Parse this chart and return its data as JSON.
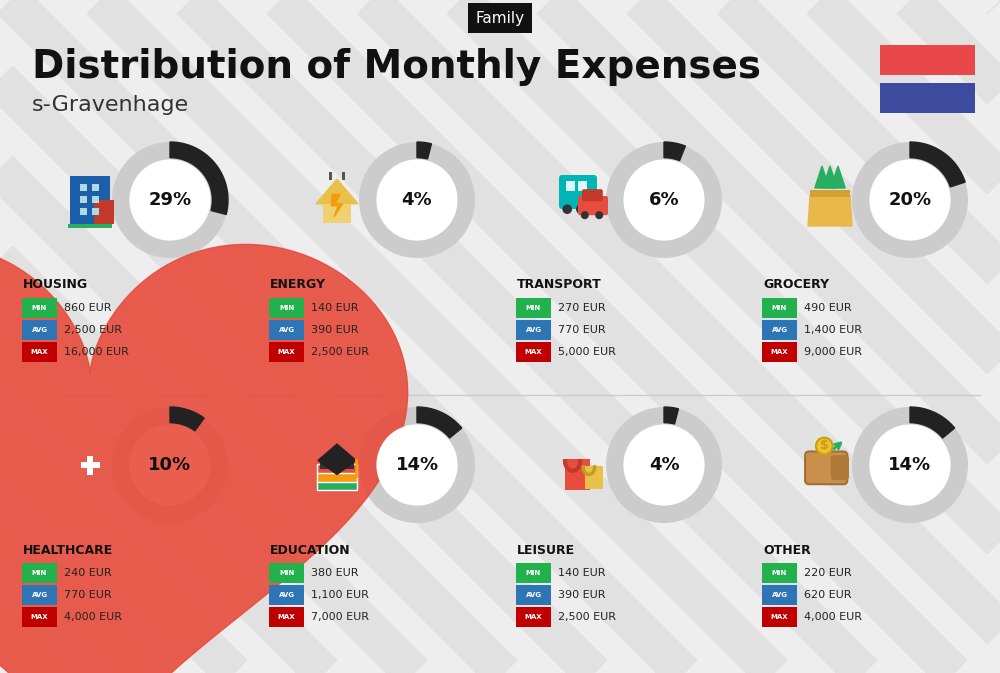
{
  "title": "Distribution of Monthly Expenses",
  "subtitle": "s-Gravenhage",
  "tag": "Family",
  "bg_color": "#eeeeee",
  "categories": [
    {
      "name": "HOUSING",
      "pct": 29,
      "row": 0,
      "col": 0,
      "min": "860 EUR",
      "avg": "2,500 EUR",
      "max": "16,000 EUR"
    },
    {
      "name": "ENERGY",
      "pct": 4,
      "row": 0,
      "col": 1,
      "min": "140 EUR",
      "avg": "390 EUR",
      "max": "2,500 EUR"
    },
    {
      "name": "TRANSPORT",
      "pct": 6,
      "row": 0,
      "col": 2,
      "min": "270 EUR",
      "avg": "770 EUR",
      "max": "5,000 EUR"
    },
    {
      "name": "GROCERY",
      "pct": 20,
      "row": 0,
      "col": 3,
      "min": "490 EUR",
      "avg": "1,400 EUR",
      "max": "9,000 EUR"
    },
    {
      "name": "HEALTHCARE",
      "pct": 10,
      "row": 1,
      "col": 0,
      "min": "240 EUR",
      "avg": "770 EUR",
      "max": "4,000 EUR"
    },
    {
      "name": "EDUCATION",
      "pct": 14,
      "row": 1,
      "col": 1,
      "min": "380 EUR",
      "avg": "1,100 EUR",
      "max": "7,000 EUR"
    },
    {
      "name": "LEISURE",
      "pct": 4,
      "row": 1,
      "col": 2,
      "min": "140 EUR",
      "avg": "390 EUR",
      "max": "2,500 EUR"
    },
    {
      "name": "OTHER",
      "pct": 14,
      "row": 1,
      "col": 3,
      "min": "220 EUR",
      "avg": "620 EUR",
      "max": "4,000 EUR"
    }
  ],
  "color_min": "#22b14c",
  "color_avg": "#2e75b6",
  "color_max": "#c00000",
  "color_tag_bg": "#111111",
  "color_tag_text": "#ffffff",
  "flag_red": "#e8484a",
  "flag_blue": "#3d4b9e",
  "stripe_color": "#d8d8d8",
  "circle_bg": "#cccccc",
  "arc_color": "#222222",
  "divider_color": "#cccccc",
  "title_fontsize": 28,
  "subtitle_fontsize": 16,
  "cat_name_fontsize": 9,
  "badge_label_fontsize": 5,
  "badge_value_fontsize": 8,
  "pct_fontsize": 13
}
